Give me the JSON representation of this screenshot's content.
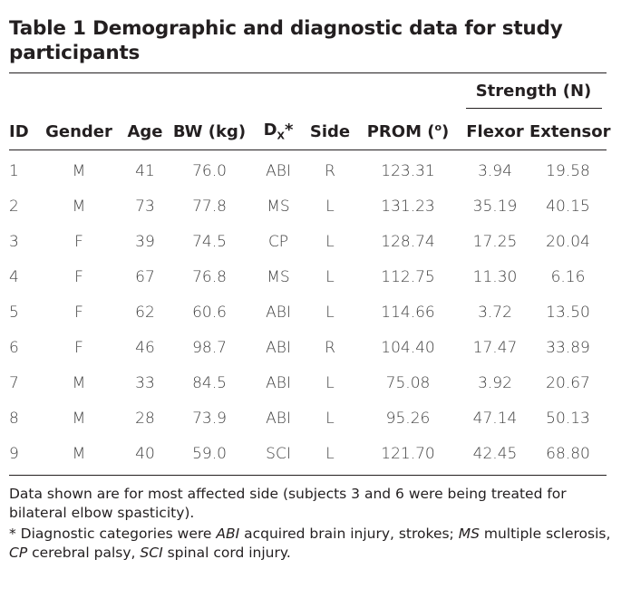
{
  "table": {
    "caption": "Table 1 Demographic and diagnostic data for study participants",
    "group_header": "Strength (N)",
    "columns": [
      "ID",
      "Gender",
      "Age",
      "BW (kg)",
      "Dx*",
      "Side",
      "PROM (o)",
      "Flexor",
      "Extensor"
    ],
    "dx_base": "D",
    "dx_sub": "X",
    "dx_star": "*",
    "prom_base": "PROM (",
    "prom_sup": "o",
    "prom_close": ")",
    "rows": [
      [
        "1",
        "M",
        "41",
        "76.0",
        "ABI",
        "R",
        "123.31",
        "3.94",
        "19.58"
      ],
      [
        "2",
        "M",
        "73",
        "77.8",
        "MS",
        "L",
        "131.23",
        "35.19",
        "40.15"
      ],
      [
        "3",
        "F",
        "39",
        "74.5",
        "CP",
        "L",
        "128.74",
        "17.25",
        "20.04"
      ],
      [
        "4",
        "F",
        "67",
        "76.8",
        "MS",
        "L",
        "112.75",
        "11.30",
        "6.16"
      ],
      [
        "5",
        "F",
        "62",
        "60.6",
        "ABI",
        "L",
        "114.66",
        "3.72",
        "13.50"
      ],
      [
        "6",
        "F",
        "46",
        "98.7",
        "ABI",
        "R",
        "104.40",
        "17.47",
        "33.89"
      ],
      [
        "7",
        "M",
        "33",
        "84.5",
        "ABI",
        "L",
        "75.08",
        "3.92",
        "20.67"
      ],
      [
        "8",
        "M",
        "28",
        "73.9",
        "ABI",
        "L",
        "95.26",
        "47.14",
        "50.13"
      ],
      [
        "9",
        "M",
        "40",
        "59.0",
        "SCI",
        "L",
        "121.70",
        "42.45",
        "68.80"
      ]
    ]
  },
  "footnotes": {
    "note1": "Data shown are for most affected side (subjects 3 and 6 were being treated for bilateral elbow spasticity).",
    "note2_prefix": "* Diagnostic categories were ",
    "abi_abbr": "ABI",
    "abi_text": " acquired brain injury, strokes; ",
    "ms_abbr": "MS",
    "ms_text": " multiple sclerosis, ",
    "cp_abbr": "CP",
    "cp_text": " cerebral palsy, ",
    "sci_abbr": "SCI",
    "sci_text": " spinal cord injury."
  }
}
